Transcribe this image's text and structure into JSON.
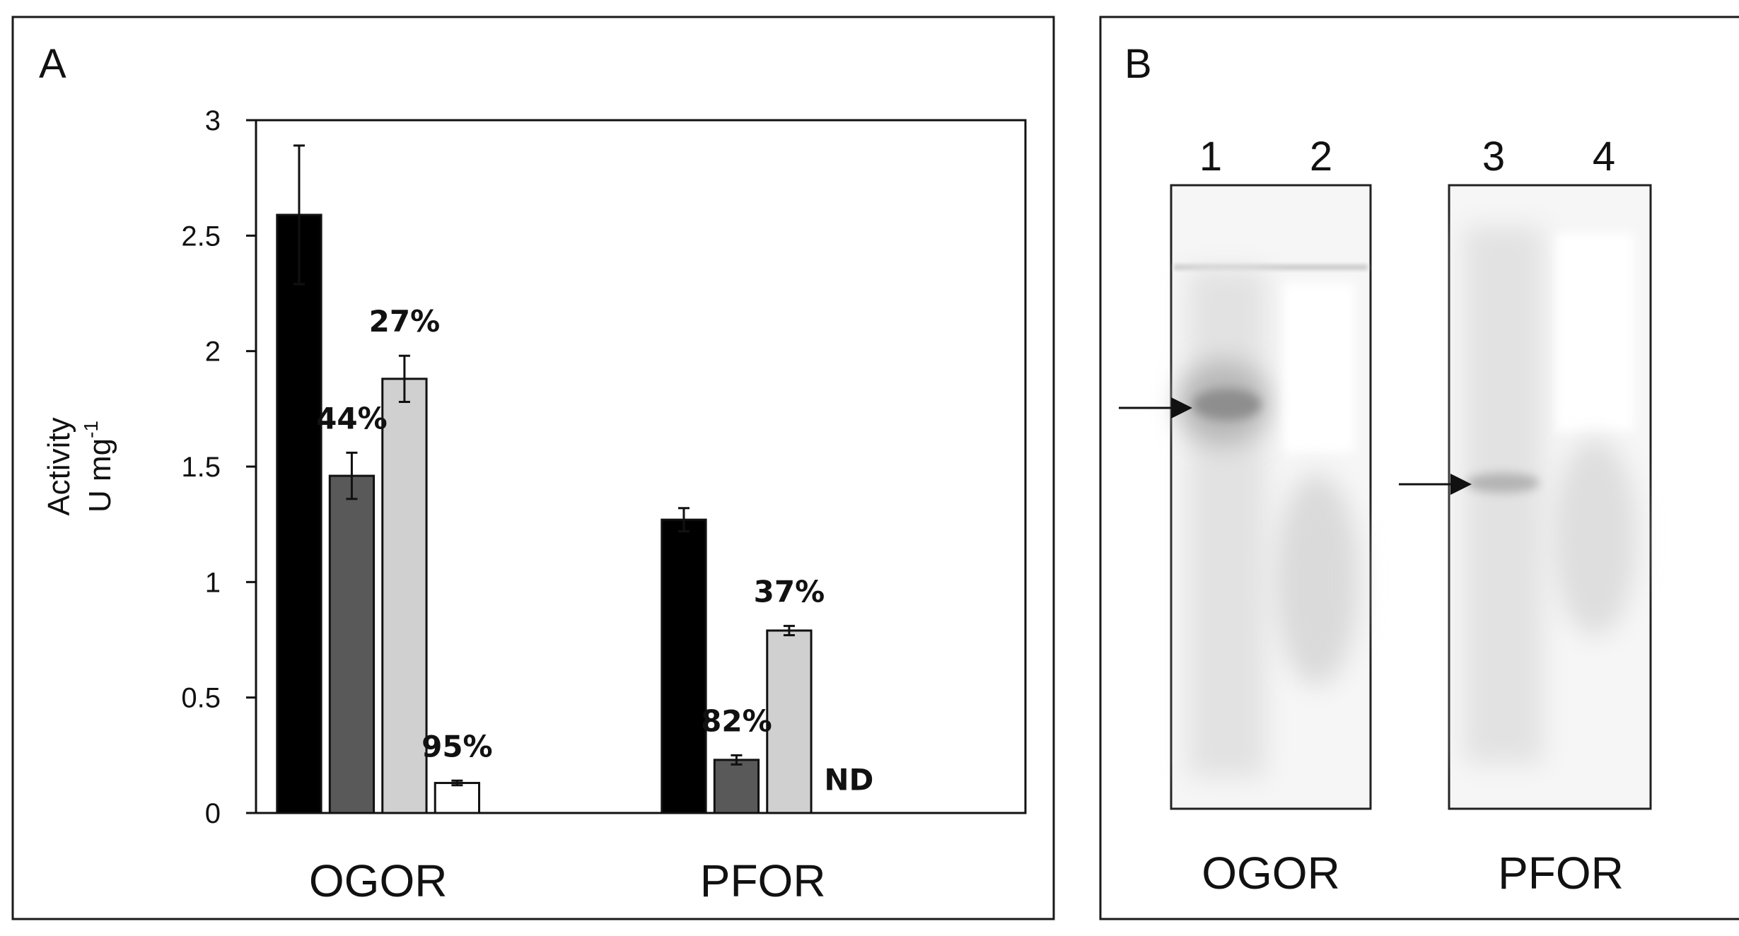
{
  "panel_a": {
    "letter": "A"
  },
  "panel_b": {
    "letter": "B",
    "gels": [
      {
        "label": "OGOR",
        "lanes": [
          "1",
          "2"
        ]
      },
      {
        "label": "PFOR",
        "lanes": [
          "3",
          "4"
        ]
      }
    ]
  },
  "chart_data": {
    "type": "bar",
    "title": "",
    "xlabel": "",
    "ylabel": [
      "Activity",
      "U mg",
      "-1"
    ],
    "ylim": [
      0,
      3
    ],
    "yticks": [
      {
        "value": 0,
        "label": "0"
      },
      {
        "value": 0.5,
        "label": "0.5"
      },
      {
        "value": 1,
        "label": "1"
      },
      {
        "value": 1.5,
        "label": "1.5"
      },
      {
        "value": 2,
        "label": "2"
      },
      {
        "value": 2.5,
        "label": "2.5"
      },
      {
        "value": 3,
        "label": "3"
      }
    ],
    "categories": [
      "OGOR",
      "PFOR"
    ],
    "grid": false,
    "legend": "none",
    "series": [
      {
        "color": "#000000",
        "values": [
          2.59,
          1.27
        ],
        "errors": [
          0.3,
          0.05
        ],
        "labels": [
          "",
          ""
        ]
      },
      {
        "color": "#595959",
        "values": [
          1.46,
          0.23
        ],
        "errors": [
          0.1,
          0.02
        ],
        "labels": [
          "44%",
          "82%"
        ]
      },
      {
        "color": "#d0d0d0",
        "values": [
          1.88,
          0.79
        ],
        "errors": [
          0.1,
          0.02
        ],
        "labels": [
          "27%",
          "37%"
        ]
      },
      {
        "color": "#ffffff",
        "values": [
          0.13,
          null
        ],
        "errors": [
          0.01,
          null
        ],
        "labels": [
          "95%",
          "ND"
        ]
      }
    ]
  }
}
